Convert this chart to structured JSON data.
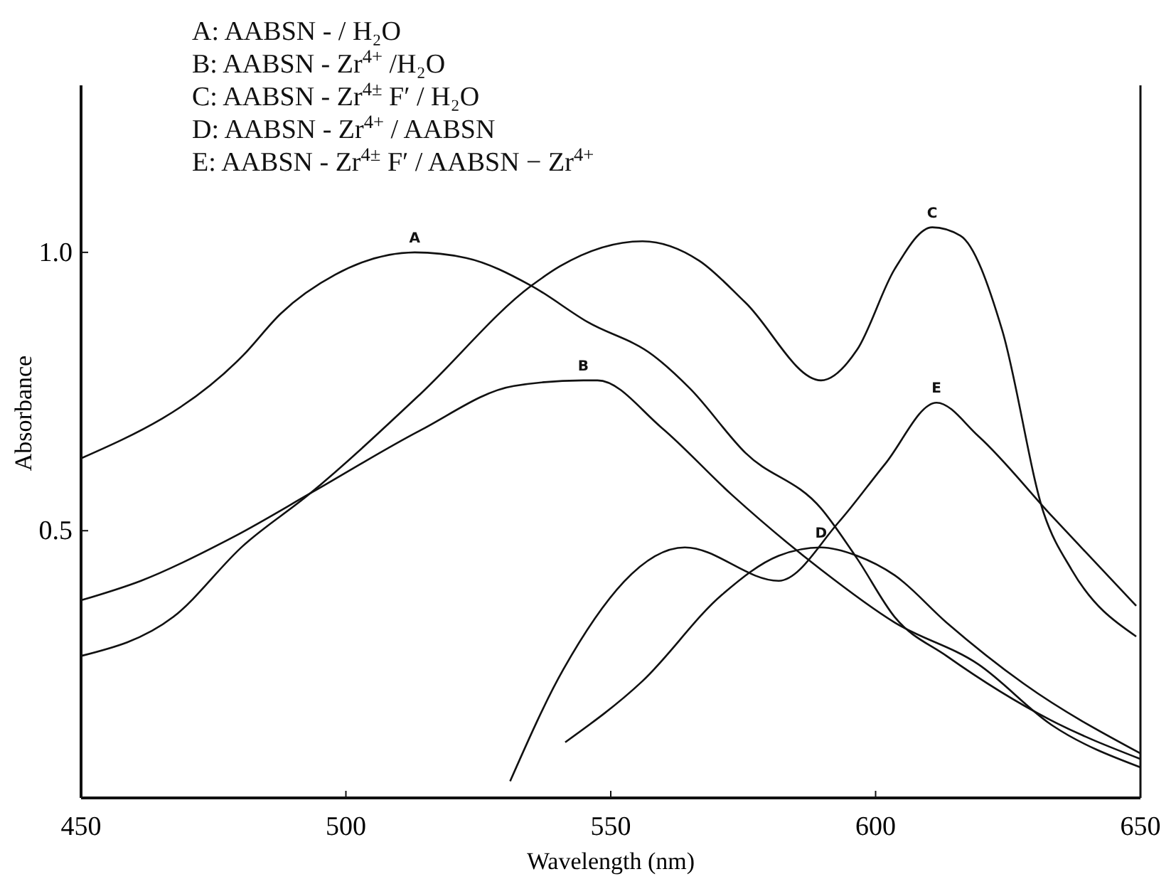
{
  "chart_data": {
    "type": "line",
    "xlabel": "Wavelength (nm)",
    "ylabel": "Absorbance",
    "annotations": [
      "A: AABSN - / H₂O",
      "B: AABSN - Zr$^{4+}$ /H₂O",
      "C: AABSN - Zr$^{4±}$ F′ / H₂O",
      "D: AABSN - Zr$^{4+}$ / AABSN",
      "E: AABSN - Zr$^{4±}$ F′ / AABSN − Zr$^{4+}$"
    ],
    "xlim": [
      450,
      650
    ],
    "xticks": [
      450,
      500,
      550,
      600,
      650
    ],
    "ylim": [
      0.02,
      1.3
    ],
    "yticks": [
      0.5,
      {
        "value": 1,
        "label": "1.0"
      }
    ],
    "grid": false,
    "marker": "none",
    "line_style": "solid",
    "series": [
      {
        "name": "A",
        "color": "#111111",
        "x": [
          450,
          480.6,
          487.7,
          498,
          513,
          522.7,
          535,
          545.6,
          558,
          565,
          575.4,
          589.7,
          596.5,
          603.6,
          613.4,
          633,
          650
        ],
        "values": [
          0.63,
          0.815,
          0.89,
          0.96,
          1.0,
          0.99,
          0.94,
          0.875,
          0.815,
          0.755,
          0.64,
          0.54,
          0.45,
          0.345,
          0.275,
          0.16,
          0.09
        ]
      },
      {
        "name": "B",
        "color": "#111111",
        "x": [
          450,
          461.3,
          479,
          493.8,
          514,
          531.7,
          544.8,
          547.5,
          559.6,
          572.8,
          589.7,
          603.6,
          619.4,
          633.4,
          650
        ],
        "values": [
          0.375,
          0.41,
          0.49,
          0.57,
          0.68,
          0.76,
          0.77,
          0.77,
          0.685,
          0.565,
          0.43,
          0.335,
          0.26,
          0.15,
          0.075
        ]
      },
      {
        "name": "C",
        "color": "#111111",
        "x": [
          450,
          467.4,
          480.6,
          493,
          514,
          535,
          540.4,
          556,
          566.7,
          575.4,
          589.7,
          596.5,
          603.6,
          610.7,
          616,
          623.9,
          631.8,
          637,
          649.2
        ],
        "values": [
          0.275,
          0.345,
          0.473,
          0.565,
          0.745,
          0.94,
          0.975,
          1.02,
          0.985,
          0.91,
          0.77,
          0.825,
          0.97,
          1.045,
          1.03,
          0.86,
          0.53,
          0.43,
          0.31
        ]
      },
      {
        "name": "D",
        "color": "#111111",
        "x": [
          541.4,
          556,
          571,
          581.7,
          589.7,
          596.5,
          603.6,
          613.4,
          628,
          650
        ],
        "values": [
          0.12,
          0.23,
          0.385,
          0.455,
          0.47,
          0.455,
          0.42,
          0.335,
          0.225,
          0.1
        ]
      },
      {
        "name": "E",
        "color": "#111111",
        "x": [
          531,
          541,
          564,
          581.7,
          593,
          601.8,
          611.5,
          619.4,
          633.4,
          649.2
        ],
        "values": [
          0.05,
          0.25,
          0.47,
          0.41,
          0.515,
          0.62,
          0.73,
          0.67,
          0.525,
          0.365
        ]
      }
    ]
  }
}
